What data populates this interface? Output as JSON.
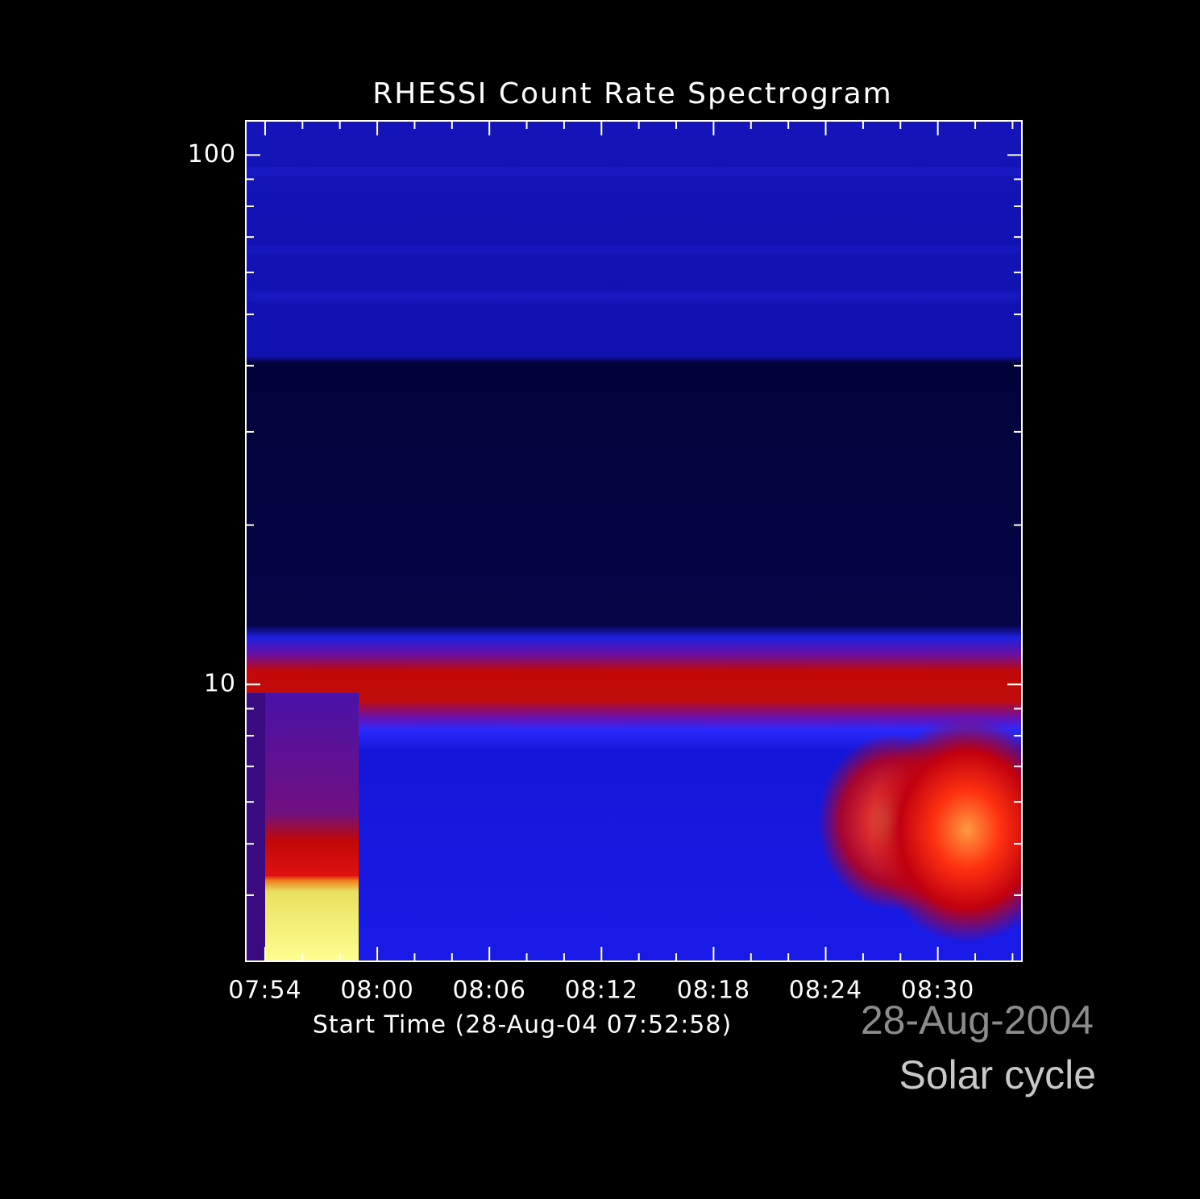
{
  "chart_data": {
    "type": "spectrogram",
    "title": "RHESSI Count Rate Spectrogram",
    "xlabel": "Start Time (28-Aug-04 07:52:58)",
    "annotations": [
      "28-Aug-2004",
      "Solar cycle"
    ],
    "xlim": [
      472.9667,
      514.5
    ],
    "xticks": [
      {
        "value": 474,
        "label": "07:54"
      },
      {
        "value": 480,
        "label": "08:00"
      },
      {
        "value": 486,
        "label": "08:06"
      },
      {
        "value": 492,
        "label": "08:12"
      },
      {
        "value": 498,
        "label": "08:18"
      },
      {
        "value": 504,
        "label": "08:24"
      },
      {
        "value": 510,
        "label": "08:30"
      }
    ],
    "xminor": [
      476,
      478,
      482,
      484,
      488,
      490,
      494,
      496,
      500,
      502,
      506,
      508,
      512,
      514
    ],
    "ylim": [
      3,
      116
    ],
    "yscale": "log",
    "yticks": [
      10,
      100
    ],
    "yminor": [
      4,
      5,
      6,
      7,
      8,
      9,
      20,
      30,
      40,
      50,
      60,
      70,
      80,
      90
    ]
  }
}
